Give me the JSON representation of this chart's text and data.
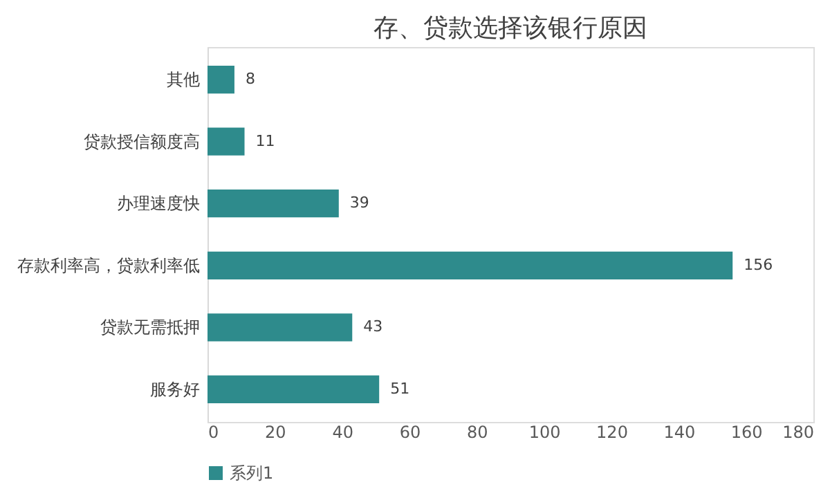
{
  "chart_data": {
    "type": "bar",
    "orientation": "horizontal",
    "title": "存、贷款选择该银行原因",
    "categories": [
      "其他",
      "贷款授信额度高",
      "办理速度快",
      "存款利率高，贷款利率低",
      "贷款无需抵押",
      "服务好"
    ],
    "series": [
      {
        "name": "系列1",
        "color": "#2e8b8c",
        "values": [
          8,
          11,
          39,
          156,
          43,
          51
        ]
      }
    ],
    "xlim": [
      0,
      180
    ],
    "xticks": [
      0,
      20,
      40,
      60,
      80,
      100,
      120,
      140,
      160,
      180
    ],
    "data_labels": true,
    "legend": "bottom",
    "grid": false
  }
}
